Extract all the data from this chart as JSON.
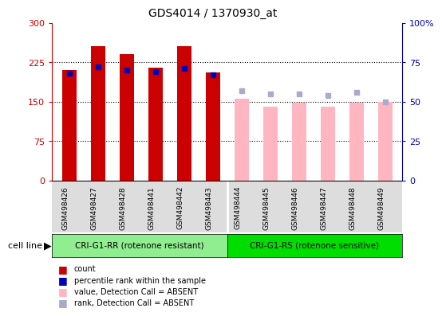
{
  "title": "GDS4014 / 1370930_at",
  "samples": [
    "GSM498426",
    "GSM498427",
    "GSM498428",
    "GSM498441",
    "GSM498442",
    "GSM498443",
    "GSM498444",
    "GSM498445",
    "GSM498446",
    "GSM498447",
    "GSM498448",
    "GSM498449"
  ],
  "group1_label": "CRI-G1-RR (rotenone resistant)",
  "group2_label": "CRI-G1-RS (rotenone sensitive)",
  "group1_color": "#90EE90",
  "group2_color": "#00DD00",
  "bar_width": 0.5,
  "red_values": [
    210,
    255,
    240,
    215,
    255,
    205,
    null,
    null,
    null,
    null,
    null,
    null
  ],
  "blue_values": [
    68.0,
    72.0,
    70.0,
    69.0,
    71.0,
    67.0,
    null,
    null,
    null,
    null,
    null,
    null
  ],
  "pink_values": [
    null,
    null,
    null,
    null,
    null,
    null,
    155,
    140,
    148,
    140,
    148,
    150
  ],
  "lightblue_values": [
    null,
    null,
    null,
    null,
    null,
    null,
    57,
    55,
    55,
    54,
    56,
    50
  ],
  "ylim_left": [
    0,
    300
  ],
  "ylim_right": [
    0,
    100
  ],
  "yticks_left": [
    0,
    75,
    150,
    225,
    300
  ],
  "yticks_right": [
    0,
    25,
    50,
    75,
    100
  ],
  "ytick_labels_left": [
    "0",
    "75",
    "150",
    "225",
    "300"
  ],
  "ytick_labels_right": [
    "0",
    "25",
    "50",
    "75",
    "100%"
  ],
  "red_color": "#CC0000",
  "blue_color": "#0000BB",
  "pink_color": "#FFB6C1",
  "lightblue_color": "#AAAACC",
  "bg_color": "#FFFFFF",
  "legend_items": [
    "count",
    "percentile rank within the sample",
    "value, Detection Call = ABSENT",
    "rank, Detection Call = ABSENT"
  ],
  "legend_colors": [
    "#CC0000",
    "#0000BB",
    "#FFB6C1",
    "#AAAACC"
  ],
  "cell_line_label": "cell line",
  "hline_values": [
    75,
    150,
    225
  ]
}
